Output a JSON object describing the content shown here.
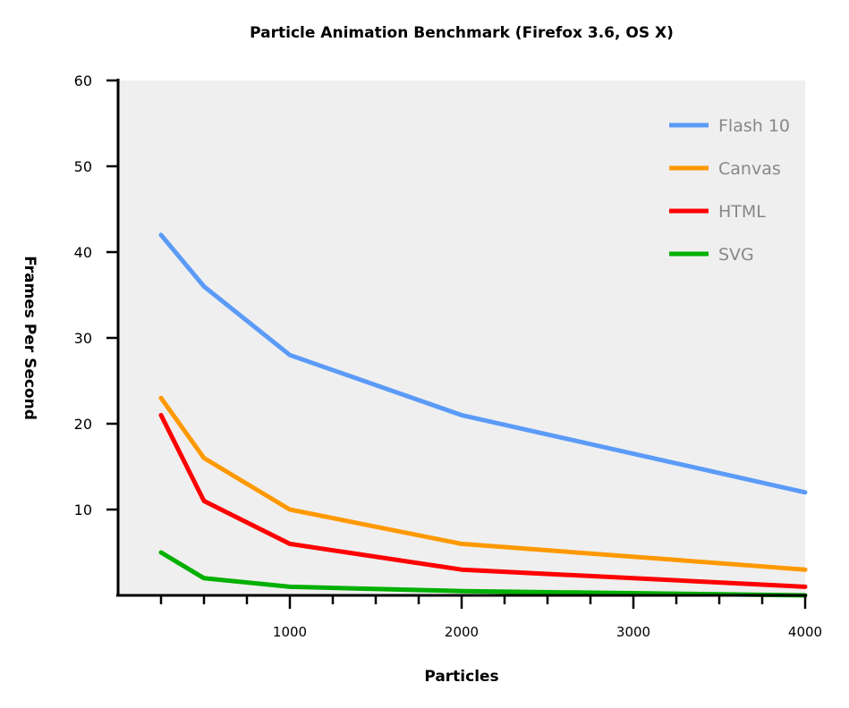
{
  "chart_data": {
    "type": "line",
    "title": "Particle Animation Benchmark (Firefox 3.6, OS X)",
    "xlabel": "Particles",
    "ylabel": "Frames Per Second",
    "x": [
      250,
      500,
      1000,
      2000,
      4000
    ],
    "xlim": [
      0,
      4000
    ],
    "ylim": [
      0,
      60
    ],
    "xticks": [
      "1000",
      "2000",
      "3000",
      "4000"
    ],
    "yticks": [
      "10",
      "20",
      "30",
      "40",
      "50",
      "60"
    ],
    "grid": false,
    "legend_position": "top-right",
    "background": "#efefef",
    "series": [
      {
        "name": "Flash 10",
        "color": "#5b9bf8",
        "values": [
          42,
          36,
          28,
          21,
          12
        ]
      },
      {
        "name": "Canvas",
        "color": "#ff9900",
        "values": [
          23,
          16,
          10,
          6,
          3
        ]
      },
      {
        "name": "HTML",
        "color": "#ff0000",
        "values": [
          21,
          11,
          6,
          3,
          1
        ]
      },
      {
        "name": "SVG",
        "color": "#00b000",
        "values": [
          5,
          2,
          1,
          0.5,
          0
        ]
      }
    ]
  }
}
